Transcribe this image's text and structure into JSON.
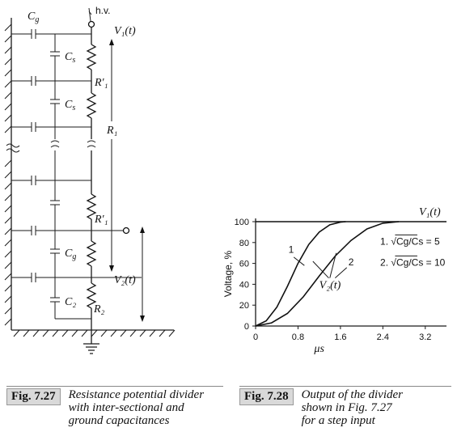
{
  "circuit": {
    "hv_label": "h.v.",
    "v1_label": "V₁(t)",
    "v2_label": "V₂(t)",
    "R1_label": "R₁",
    "R1p_label": "R′₁",
    "R2_label": "R₂",
    "Cg_label": "C",
    "Cg_sub": "g",
    "Cs_label": "C",
    "Cs_sub": "s",
    "C2_label": "C₂"
  },
  "chart_data": {
    "type": "line",
    "xlabel": "μs",
    "ylabel": "Voltage, %",
    "x_ticks": [
      "0",
      "0.8",
      "1.6",
      "2.4",
      "3.2"
    ],
    "y_ticks": [
      "0",
      "20",
      "40",
      "60",
      "80",
      "100"
    ],
    "xlim": [
      0,
      3.6
    ],
    "ylim": [
      0,
      100
    ],
    "reference_label": "V₁(t)",
    "output_label": "V₂(t)",
    "series": [
      {
        "name": "1",
        "x": [
          0,
          0.2,
          0.4,
          0.6,
          0.8,
          1.0,
          1.2,
          1.4,
          1.6,
          1.7
        ],
        "y": [
          0,
          5,
          18,
          38,
          60,
          78,
          90,
          97,
          99.5,
          100
        ]
      },
      {
        "name": "2",
        "x": [
          0,
          0.3,
          0.6,
          0.9,
          1.2,
          1.5,
          1.8,
          2.1,
          2.4,
          2.7
        ],
        "y": [
          0,
          3,
          12,
          28,
          48,
          67,
          82,
          93,
          98.5,
          100
        ]
      }
    ],
    "legend": [
      {
        "num": "1.",
        "expr": "Cg/Cs",
        "value": "= 5"
      },
      {
        "num": "2.",
        "expr": "Cg/Cs",
        "value": "= 10"
      }
    ]
  },
  "captions": {
    "fig27_tag": "Fig. 7.27",
    "fig27_text": "Resistance potential divider\nwith inter-sectional and\nground capacitances",
    "fig28_tag": "Fig. 7.28",
    "fig28_text": "Output of the divider\nshown in Fig. 7.27\nfor a step input"
  }
}
